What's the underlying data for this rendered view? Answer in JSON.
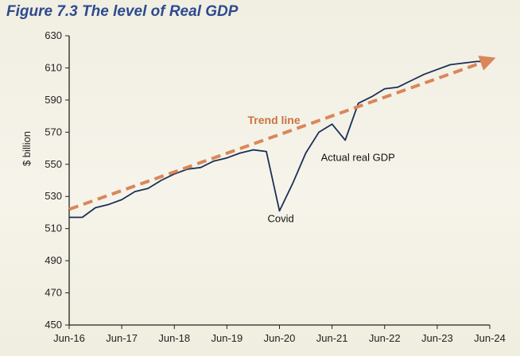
{
  "figure": {
    "title": "Figure 7.3  The level of Real GDP"
  },
  "chart_data": {
    "type": "line",
    "title": "Figure 7.3  The level of Real GDP",
    "ylabel": "$ billion",
    "xlabel": "",
    "ylim": [
      450,
      630
    ],
    "yticks": [
      450,
      470,
      490,
      510,
      530,
      550,
      570,
      590,
      610,
      630
    ],
    "xlim": [
      "Jun-16",
      "Jun-24"
    ],
    "xticks": [
      "Jun-16",
      "Jun-17",
      "Jun-18",
      "Jun-19",
      "Jun-20",
      "Jun-21",
      "Jun-22",
      "Jun-23",
      "Jun-24"
    ],
    "grid": false,
    "colors": {
      "actual": "#1b2f57",
      "trend": "#d9875a",
      "axis": "#222222"
    },
    "series": [
      {
        "name": "Actual real GDP",
        "style": "solid",
        "x": [
          "Jun-16",
          "Sep-16",
          "Dec-16",
          "Mar-17",
          "Jun-17",
          "Sep-17",
          "Dec-17",
          "Mar-18",
          "Jun-18",
          "Sep-18",
          "Dec-18",
          "Mar-19",
          "Jun-19",
          "Sep-19",
          "Dec-19",
          "Mar-20",
          "Jun-20",
          "Sep-20",
          "Dec-20",
          "Mar-21",
          "Jun-21",
          "Sep-21",
          "Dec-21",
          "Mar-22",
          "Jun-22",
          "Sep-22",
          "Dec-22",
          "Mar-23",
          "Jun-23",
          "Sep-23",
          "Dec-23",
          "Mar-24",
          "Jun-24"
        ],
        "values": [
          517,
          517,
          523,
          525,
          528,
          533,
          535,
          540,
          544,
          547,
          548,
          552,
          554,
          557,
          559,
          558,
          521,
          538,
          557,
          570,
          575,
          565,
          588,
          592,
          597,
          598,
          602,
          606,
          609,
          612,
          613,
          614,
          614
        ]
      },
      {
        "name": "Trend line",
        "style": "dashed",
        "x": [
          "Jun-16",
          "Jun-24"
        ],
        "values": [
          522,
          615
        ]
      }
    ],
    "annotations": [
      {
        "text": "Trend line",
        "x": "Jun-20",
        "y": 575
      },
      {
        "text": "Actual real GDP",
        "x": "Jun-21",
        "y": 552
      },
      {
        "text": "Covid",
        "x": "Jun-20",
        "y": 514
      }
    ]
  }
}
